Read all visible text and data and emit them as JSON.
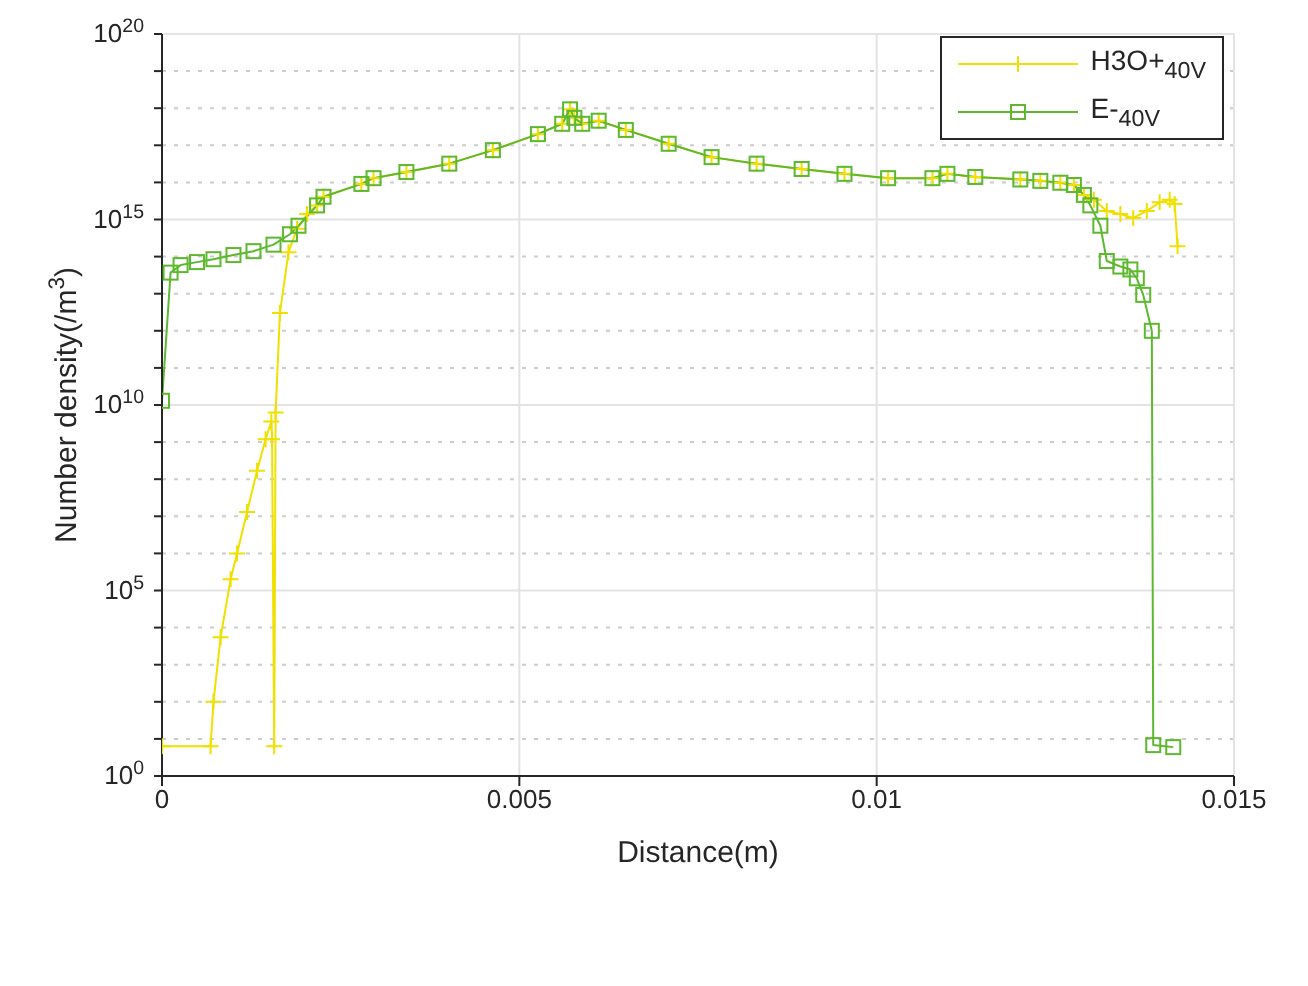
{
  "chart_data": {
    "type": "line",
    "xlabel": "Distance(m)",
    "ylabel": "Number density(/m$^{3}$)",
    "log": "y",
    "grid": true,
    "legend": "top right",
    "xlim": [
      0,
      0.015
    ],
    "xticks": [
      0,
      0.005,
      0.01,
      0.015
    ],
    "ylim": [
      1,
      1e+20
    ],
    "yticks": [
      {
        "value": 1,
        "label": "10$^{0}$"
      },
      {
        "value": 10,
        "label": null
      },
      {
        "value": 100,
        "label": null
      },
      {
        "value": 1000,
        "label": null
      },
      {
        "value": 10000,
        "label": null
      },
      {
        "value": 100000,
        "label": "10$^{5}$"
      },
      {
        "value": 1000000.0,
        "label": null
      },
      {
        "value": 10000000.0,
        "label": null
      },
      {
        "value": 100000000.0,
        "label": null
      },
      {
        "value": 1000000000.0,
        "label": null
      },
      {
        "value": 10000000000.0,
        "label": "10$^{10}$"
      },
      {
        "value": 100000000000.0,
        "label": null
      },
      {
        "value": 1000000000000.0,
        "label": null
      },
      {
        "value": 10000000000000.0,
        "label": null
      },
      {
        "value": 100000000000000.0,
        "label": null
      },
      {
        "value": 1000000000000000.0,
        "label": "10$^{15}$"
      },
      {
        "value": 1e+16,
        "label": null
      },
      {
        "value": 1e+17,
        "label": null
      },
      {
        "value": 1e+18,
        "label": null
      },
      {
        "value": 1e+19,
        "label": null
      },
      {
        "value": 1e+20,
        "label": "10$^{20}$"
      }
    ],
    "series": [
      {
        "name": "H3O+$_{40V}$",
        "color": "#f0e000",
        "marker": "cross",
        "x": [
          0,
          0.00068,
          0.00072,
          0.00082,
          0.00096,
          0.00105,
          0.00119,
          0.00133,
          0.00145,
          0.00153,
          0.00154,
          0.00157,
          0.00159,
          0.00165,
          0.00177,
          0.00189,
          0.00203,
          0.00217,
          0.00226,
          0.00279,
          0.00296,
          0.00342,
          0.00402,
          0.00463,
          0.00526,
          0.0056,
          0.00571,
          0.00577,
          0.00588,
          0.00611,
          0.00649,
          0.00709,
          0.00769,
          0.00832,
          0.00895,
          0.00955,
          0.01016,
          0.01078,
          0.01099,
          0.01138,
          0.01201,
          0.01229,
          0.01257,
          0.01276,
          0.0129,
          0.01304,
          0.01322,
          0.01341,
          0.01359,
          0.01378,
          0.01396,
          0.0141,
          0.01417,
          0.01421
        ],
        "values": [
          6.3,
          6.3,
          100,
          5500,
          200000,
          1000000.0,
          13000000.0,
          170000000.0,
          1200000000.0,
          3600000000.0,
          1200000000.0,
          6.3,
          6300000000.0,
          3000000000000.0,
          130000000000000.0,
          560000000000000.0,
          1400000000000000.0,
          2400000000000000.0,
          4100000000000000.0,
          9100000000000000.0,
          1.3e+16,
          1.9e+16,
          3.2e+16,
          7.4e+16,
          2e+17,
          3.8e+17,
          9.3e+17,
          5.5e+17,
          3.8e+17,
          4.6e+17,
          2.6e+17,
          1.1e+17,
          4.8e+16,
          3.2e+16,
          2.3e+16,
          1.7e+16,
          1.3e+16,
          1.3e+16,
          1.7e+16,
          1.4e+16,
          1.2e+16,
          1.1e+16,
          9800000000000000.0,
          8500000000000000.0,
          4600000000000000.0,
          3400000000000000.0,
          1700000000000000.0,
          1400000000000000.0,
          1100000000000000.0,
          1700000000000000.0,
          2900000000000000.0,
          3400000000000000.0,
          2600000000000000.0,
          190000000000000.0
        ]
      },
      {
        "name": "E-$_{40V}$",
        "color": "#5cb82e",
        "marker": "square",
        "x": [
          0,
          0.00012,
          0.00026,
          0.00049,
          0.00072,
          0.001,
          0.00128,
          0.00156,
          0.00179,
          0.00191,
          0.00217,
          0.00226,
          0.00279,
          0.00296,
          0.00342,
          0.00402,
          0.00463,
          0.00526,
          0.0056,
          0.00571,
          0.00577,
          0.00588,
          0.00611,
          0.00649,
          0.00709,
          0.00769,
          0.00832,
          0.00895,
          0.00955,
          0.01016,
          0.01078,
          0.01099,
          0.01138,
          0.01201,
          0.01229,
          0.01257,
          0.01276,
          0.0129,
          0.01299,
          0.01313,
          0.01322,
          0.01341,
          0.01355,
          0.01364,
          0.01373,
          0.01385,
          0.01387,
          0.01415
        ],
        "values": [
          13000000000.0,
          37000000000000.0,
          59000000000000.0,
          71000000000000.0,
          85000000000000.0,
          110000000000000.0,
          140000000000000.0,
          210000000000000.0,
          400000000000000.0,
          680000000000000.0,
          2400000000000000.0,
          4100000000000000.0,
          9100000000000000.0,
          1.3e+16,
          1.9e+16,
          3.2e+16,
          7.4e+16,
          2e+17,
          3.8e+17,
          9.3e+17,
          5.5e+17,
          3.8e+17,
          4.6e+17,
          2.6e+17,
          1.1e+17,
          4.8e+16,
          3.2e+16,
          2.3e+16,
          1.7e+16,
          1.3e+16,
          1.3e+16,
          1.7e+16,
          1.4e+16,
          1.2e+16,
          1.1e+16,
          9800000000000000.0,
          8500000000000000.0,
          4600000000000000.0,
          2400000000000000.0,
          680000000000000.0,
          76000000000000.0,
          54000000000000.0,
          45000000000000.0,
          26000000000000.0,
          9300000000000.0,
          1000000000000.0,
          6.8,
          6
        ]
      }
    ]
  }
}
